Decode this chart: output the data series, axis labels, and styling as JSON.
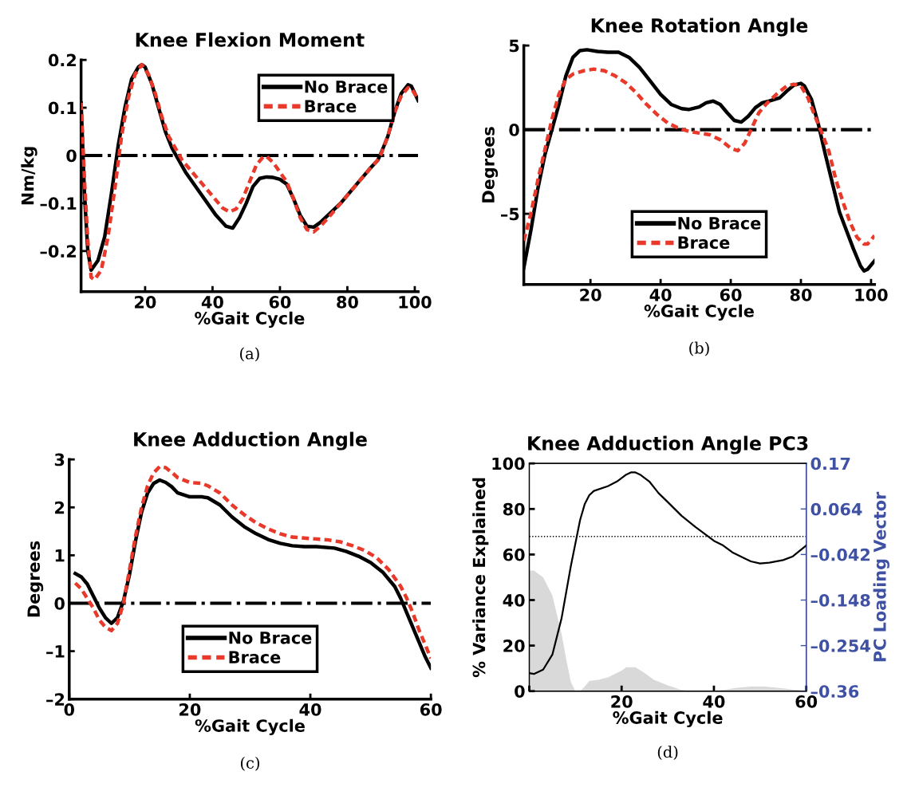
{
  "chart_data": [
    {
      "type": "line",
      "title": "Knee Flexion Moment",
      "xlabel": "%Gait Cycle",
      "ylabel": "Nm/kg",
      "xlim": [
        1,
        101
      ],
      "ylim": [
        -0.285,
        0.2
      ],
      "xticks": [
        20,
        40,
        60,
        80,
        100
      ],
      "yticks": [
        {
          "value": -0.2,
          "label": "–0.2"
        },
        {
          "value": -0.1,
          "label": "–0.1"
        },
        0,
        0.1,
        0.2
      ],
      "grid": false,
      "legend": "top right",
      "marker": "none",
      "ref_lines": [
        {
          "axis": "y",
          "value": 0,
          "color": "#000000",
          "line_style": "dashdot"
        }
      ],
      "annotations": [
        "(a)"
      ],
      "series": [
        {
          "name": "No Brace",
          "color": "#000000",
          "line_style": "solid",
          "x": [
            1,
            2,
            3,
            4,
            6,
            8,
            10,
            12,
            14,
            16,
            18,
            19,
            20,
            22,
            24,
            26,
            28,
            30,
            32,
            35,
            38,
            41,
            44,
            46,
            48,
            50,
            52,
            54,
            56,
            58,
            60,
            62,
            64,
            66,
            68,
            70,
            72,
            75,
            78,
            81,
            84,
            87,
            89,
            90,
            92,
            94,
            96,
            98,
            99,
            101
          ],
          "values": [
            0.11,
            -0.08,
            -0.2,
            -0.24,
            -0.22,
            -0.17,
            -0.08,
            0.02,
            0.1,
            0.16,
            0.185,
            0.19,
            0.185,
            0.15,
            0.1,
            0.05,
            0.015,
            -0.01,
            -0.035,
            -0.065,
            -0.095,
            -0.125,
            -0.148,
            -0.152,
            -0.13,
            -0.1,
            -0.065,
            -0.048,
            -0.045,
            -0.046,
            -0.05,
            -0.06,
            -0.09,
            -0.125,
            -0.148,
            -0.15,
            -0.14,
            -0.12,
            -0.1,
            -0.075,
            -0.05,
            -0.025,
            -0.01,
            0.005,
            0.04,
            0.09,
            0.13,
            0.148,
            0.145,
            0.115
          ]
        },
        {
          "name": "Brace",
          "color": "#e8392b",
          "line_style": "dashed",
          "x": [
            1,
            2,
            3,
            4,
            5,
            7,
            9,
            11,
            13,
            15,
            17,
            19,
            21,
            23,
            25,
            27,
            29,
            31,
            34,
            37,
            40,
            43,
            45,
            47,
            49,
            51,
            53,
            55,
            56,
            58,
            60,
            62,
            64,
            66,
            68,
            70,
            72,
            75,
            78,
            81,
            84,
            87,
            89,
            90,
            92,
            94,
            96,
            98,
            99,
            101
          ],
          "values": [
            0.11,
            -0.05,
            -0.18,
            -0.255,
            -0.26,
            -0.24,
            -0.17,
            -0.07,
            0.04,
            0.12,
            0.17,
            0.19,
            0.17,
            0.13,
            0.08,
            0.04,
            0.015,
            -0.01,
            -0.035,
            -0.06,
            -0.085,
            -0.11,
            -0.118,
            -0.112,
            -0.09,
            -0.055,
            -0.02,
            -0.003,
            -0.002,
            -0.015,
            -0.035,
            -0.055,
            -0.09,
            -0.13,
            -0.155,
            -0.16,
            -0.148,
            -0.125,
            -0.1,
            -0.075,
            -0.05,
            -0.025,
            -0.01,
            0.003,
            0.04,
            0.09,
            0.125,
            0.142,
            0.14,
            0.118
          ]
        }
      ]
    },
    {
      "type": "line",
      "title": "Knee Rotation Angle",
      "xlabel": "%Gait Cycle",
      "ylabel": "Degrees",
      "xlim": [
        1,
        101
      ],
      "ylim": [
        -9.2,
        5
      ],
      "xticks": [
        20,
        40,
        60,
        80,
        100
      ],
      "yticks": [
        {
          "value": -5,
          "label": "–5"
        },
        0,
        5
      ],
      "grid": false,
      "legend": "bottom",
      "marker": "none",
      "ref_lines": [
        {
          "axis": "y",
          "value": 0,
          "color": "#000000",
          "line_style": "dashdot"
        }
      ],
      "annotations": [
        "(b)"
      ],
      "series": [
        {
          "name": "No Brace",
          "color": "#000000",
          "line_style": "solid",
          "x": [
            1,
            3,
            5,
            7,
            9,
            11,
            13,
            15,
            17,
            19,
            22,
            25,
            28,
            31,
            34,
            37,
            40,
            43,
            46,
            48,
            51,
            53,
            55,
            57,
            59,
            61,
            63,
            65,
            67,
            69,
            71,
            74,
            76,
            78,
            80,
            81,
            83,
            85,
            87,
            89,
            91,
            93,
            95,
            97,
            98,
            99,
            101
          ],
          "values": [
            -8.2,
            -6,
            -3.5,
            -1.5,
            0,
            1.5,
            3.2,
            4.3,
            4.7,
            4.75,
            4.65,
            4.6,
            4.6,
            4.3,
            3.7,
            2.9,
            2.1,
            1.5,
            1.25,
            1.2,
            1.35,
            1.6,
            1.7,
            1.5,
            1.0,
            0.55,
            0.45,
            0.8,
            1.3,
            1.6,
            1.7,
            1.9,
            2.3,
            2.65,
            2.75,
            2.6,
            1.8,
            0.3,
            -1.5,
            -3.2,
            -4.9,
            -6,
            -7.1,
            -8.1,
            -8.4,
            -8.3,
            -7.8
          ]
        },
        {
          "name": "Brace",
          "color": "#e8392b",
          "line_style": "dashed",
          "x": [
            1,
            3,
            5,
            7,
            9,
            11,
            13,
            15,
            18,
            21,
            24,
            27,
            30,
            33,
            36,
            39,
            42,
            45,
            48,
            51,
            54,
            57,
            60,
            62,
            64,
            66,
            68,
            70,
            73,
            76,
            78,
            80,
            82,
            84,
            86,
            88,
            90,
            92,
            94,
            96,
            98,
            99,
            101
          ],
          "values": [
            -6.6,
            -5,
            -3,
            -1.2,
            0.6,
            2.1,
            3,
            3.3,
            3.5,
            3.6,
            3.5,
            3.2,
            2.8,
            2.2,
            1.5,
            0.9,
            0.4,
            0.1,
            -0.1,
            -0.2,
            -0.3,
            -0.6,
            -1.1,
            -1.25,
            -0.8,
            0.1,
            1.0,
            1.5,
            2.1,
            2.6,
            2.7,
            2.6,
            1.9,
            0.8,
            -0.2,
            -1.3,
            -3,
            -4.3,
            -5.5,
            -6.4,
            -6.8,
            -6.8,
            -6.3
          ]
        }
      ]
    },
    {
      "type": "line",
      "title": "Knee Adduction Angle",
      "xlabel": "%Gait Cycle",
      "ylabel": "Degrees",
      "xlim": [
        0,
        60
      ],
      "ylim": [
        -2,
        3
      ],
      "xticks": [
        0,
        20,
        40,
        60
      ],
      "yticks": [
        {
          "value": -2,
          "label": "–2"
        },
        {
          "value": -1,
          "label": "–1"
        },
        0,
        1,
        2,
        3
      ],
      "grid": false,
      "legend": "bottom",
      "marker": "none",
      "ref_lines": [
        {
          "axis": "y",
          "value": 0,
          "color": "#000000",
          "line_style": "dashdot"
        }
      ],
      "annotations": [
        "(c)"
      ],
      "series": [
        {
          "name": "No Brace",
          "color": "#000000",
          "line_style": "solid",
          "x": [
            1,
            2,
            3,
            4,
            5,
            6,
            7,
            8,
            9,
            10,
            11,
            12,
            13,
            14,
            15,
            16,
            17,
            18,
            20,
            22,
            23,
            25,
            27,
            29,
            31,
            33,
            35,
            37,
            39,
            41,
            44,
            46,
            48,
            50,
            52,
            54,
            55,
            56,
            57,
            58,
            59,
            60
          ],
          "values": [
            0.62,
            0.55,
            0.4,
            0.15,
            -0.1,
            -0.3,
            -0.42,
            -0.3,
            0.05,
            0.6,
            1.3,
            1.9,
            2.3,
            2.5,
            2.57,
            2.52,
            2.43,
            2.3,
            2.22,
            2.22,
            2.2,
            2.05,
            1.8,
            1.6,
            1.45,
            1.33,
            1.25,
            1.2,
            1.18,
            1.18,
            1.15,
            1.08,
            0.98,
            0.85,
            0.65,
            0.35,
            0.1,
            -0.2,
            -0.5,
            -0.8,
            -1.1,
            -1.35
          ]
        },
        {
          "name": "Brace",
          "color": "#e8392b",
          "line_style": "dashed",
          "x": [
            1,
            2,
            3,
            4,
            5,
            6,
            7,
            8,
            9,
            10,
            11,
            12,
            13,
            14,
            15,
            16,
            17,
            18,
            20,
            22,
            23,
            25,
            27,
            29,
            31,
            33,
            35,
            37,
            40,
            43,
            45,
            47,
            49,
            51,
            53,
            55,
            56,
            57,
            58,
            59,
            60
          ],
          "values": [
            0.42,
            0.3,
            0.1,
            -0.1,
            -0.35,
            -0.5,
            -0.57,
            -0.42,
            0.0,
            0.7,
            1.4,
            2.0,
            2.45,
            2.72,
            2.85,
            2.83,
            2.73,
            2.62,
            2.52,
            2.5,
            2.45,
            2.3,
            2.05,
            1.85,
            1.68,
            1.55,
            1.45,
            1.38,
            1.35,
            1.32,
            1.28,
            1.2,
            1.1,
            0.95,
            0.7,
            0.35,
            0.1,
            -0.2,
            -0.55,
            -0.85,
            -1.15
          ]
        }
      ]
    },
    {
      "type": "line",
      "title": "Knee Adduction Angle PC3",
      "xlabel": "%Gait Cycle",
      "ylabel": "% Variance Explained",
      "y2label": "PC Loading Vector",
      "xlim": [
        0,
        60
      ],
      "ylim": [
        0,
        100
      ],
      "y2lim": [
        -0.36,
        0.17
      ],
      "xticks": [
        {
          "value": 0,
          "label": null
        },
        20,
        40,
        60
      ],
      "yticks": [
        0,
        20,
        40,
        60,
        80,
        100
      ],
      "y2ticks": [
        {
          "value": -0.36,
          "label": "–0.36"
        },
        {
          "value": -0.254,
          "label": "–0.254"
        },
        {
          "value": -0.148,
          "label": "–0.148"
        },
        {
          "value": -0.042,
          "label": "–0.042"
        },
        0.064,
        0.17
      ],
      "grid": false,
      "marker": "none",
      "ref_lines": [
        {
          "axis": "y2",
          "value": 0,
          "color": "#000000",
          "line_style": "dotted"
        }
      ],
      "annotations": [
        "(d)"
      ],
      "series": [
        {
          "type": "area",
          "color": "#d9d9d9",
          "x": [
            0,
            1,
            3,
            5,
            7,
            8,
            9,
            10,
            11,
            12,
            13,
            15,
            17,
            20,
            21,
            23,
            25,
            27,
            30,
            33,
            35,
            40,
            42,
            45,
            48,
            51,
            55,
            60
          ],
          "values": [
            53,
            53,
            50,
            42,
            25,
            14,
            4,
            0,
            0,
            2,
            4.5,
            5,
            6,
            9,
            10.5,
            10.5,
            8,
            5,
            2.5,
            0.5,
            0,
            0,
            0.5,
            1.5,
            2,
            2,
            1.2,
            0
          ]
        },
        {
          "type": "line",
          "axis": "y2",
          "color": "#000000",
          "line_style": "solid",
          "x": [
            0,
            1,
            3,
            5,
            7,
            9,
            11,
            12,
            13,
            14,
            17,
            19,
            21,
            22,
            23,
            24,
            26,
            28,
            30,
            33,
            36,
            40,
            42,
            44,
            47,
            48,
            50,
            52,
            55,
            57,
            60
          ],
          "values": [
            -0.318,
            -0.32,
            -0.31,
            -0.275,
            -0.19,
            -0.069,
            0.038,
            0.075,
            0.096,
            0.106,
            0.117,
            0.128,
            0.144,
            0.149,
            0.149,
            0.144,
            0.128,
            0.101,
            0.08,
            0.048,
            0.022,
            -0.01,
            -0.021,
            -0.037,
            -0.053,
            -0.058,
            -0.063,
            -0.061,
            -0.055,
            -0.047,
            -0.021
          ]
        }
      ]
    }
  ]
}
